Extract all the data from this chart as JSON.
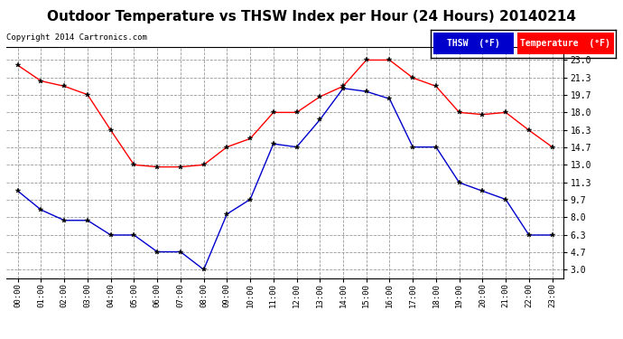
{
  "title": "Outdoor Temperature vs THSW Index per Hour (24 Hours) 20140214",
  "copyright": "Copyright 2014 Cartronics.com",
  "hours": [
    "00:00",
    "01:00",
    "02:00",
    "03:00",
    "04:00",
    "05:00",
    "06:00",
    "07:00",
    "08:00",
    "09:00",
    "10:00",
    "11:00",
    "12:00",
    "13:00",
    "14:00",
    "15:00",
    "16:00",
    "17:00",
    "18:00",
    "19:00",
    "20:00",
    "21:00",
    "22:00",
    "23:00"
  ],
  "temperature": [
    22.5,
    21.0,
    20.5,
    19.7,
    16.3,
    13.0,
    12.8,
    12.8,
    13.0,
    14.7,
    15.5,
    18.0,
    18.0,
    19.5,
    20.5,
    23.0,
    23.0,
    21.3,
    20.5,
    18.0,
    17.8,
    18.0,
    16.3,
    14.7
  ],
  "thsw": [
    10.5,
    8.7,
    7.7,
    7.7,
    6.3,
    6.3,
    4.7,
    4.7,
    3.0,
    8.3,
    9.7,
    15.0,
    14.7,
    17.3,
    20.3,
    20.0,
    19.3,
    14.7,
    14.7,
    11.3,
    10.5,
    9.7,
    6.3,
    6.3
  ],
  "temp_color": "#ff0000",
  "thsw_color": "#0000cc",
  "background_color": "#ffffff",
  "plot_bg_color": "#ffffff",
  "grid_color": "#999999",
  "yticks": [
    3.0,
    4.7,
    6.3,
    8.0,
    9.7,
    11.3,
    13.0,
    14.7,
    16.3,
    18.0,
    19.7,
    21.3,
    23.0
  ],
  "ylim": [
    2.2,
    24.2
  ],
  "title_fontsize": 11,
  "legend_thsw_label": "THSW  (°F)",
  "legend_temp_label": "Temperature  (°F)"
}
